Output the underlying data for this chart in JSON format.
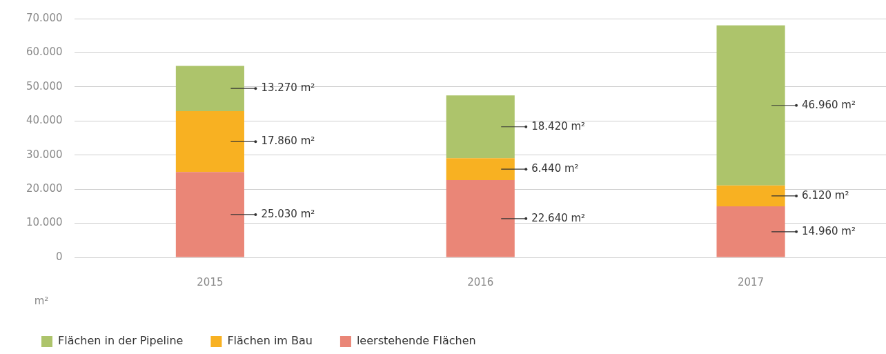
{
  "chart_data": {
    "type": "bar",
    "stacked": true,
    "ylabel": "m²",
    "categories": [
      "2015",
      "2016",
      "2017"
    ],
    "series": [
      {
        "name": "leerstehende Flächen",
        "color": "#ea8677",
        "values": [
          25030,
          22640,
          14960
        ],
        "value_labels": [
          "25.030 m²",
          "22.640 m²",
          "14.960 m²"
        ]
      },
      {
        "name": "Flächen im Bau",
        "color": "#f8b122",
        "values": [
          17860,
          6440,
          6120
        ],
        "value_labels": [
          "17.860 m²",
          "6.440 m²",
          "6.120 m²"
        ]
      },
      {
        "name": "Flächen in der Pipeline",
        "color": "#adc46b",
        "values": [
          13270,
          18420,
          46960
        ],
        "value_labels": [
          "13.270 m²",
          "18.420 m²",
          "46.960 m²"
        ]
      }
    ],
    "ylim": [
      0,
      70000
    ],
    "yticks": [
      {
        "value": 0,
        "label": "0"
      },
      {
        "value": 10000,
        "label": "10.000"
      },
      {
        "value": 20000,
        "label": "20.000"
      },
      {
        "value": 30000,
        "label": "30.000"
      },
      {
        "value": 40000,
        "label": "40.000"
      },
      {
        "value": 50000,
        "label": "50.000"
      },
      {
        "value": 60000,
        "label": "60.000"
      },
      {
        "value": 70000,
        "label": "70.000"
      }
    ],
    "grid": "y",
    "legend": "bottom"
  }
}
